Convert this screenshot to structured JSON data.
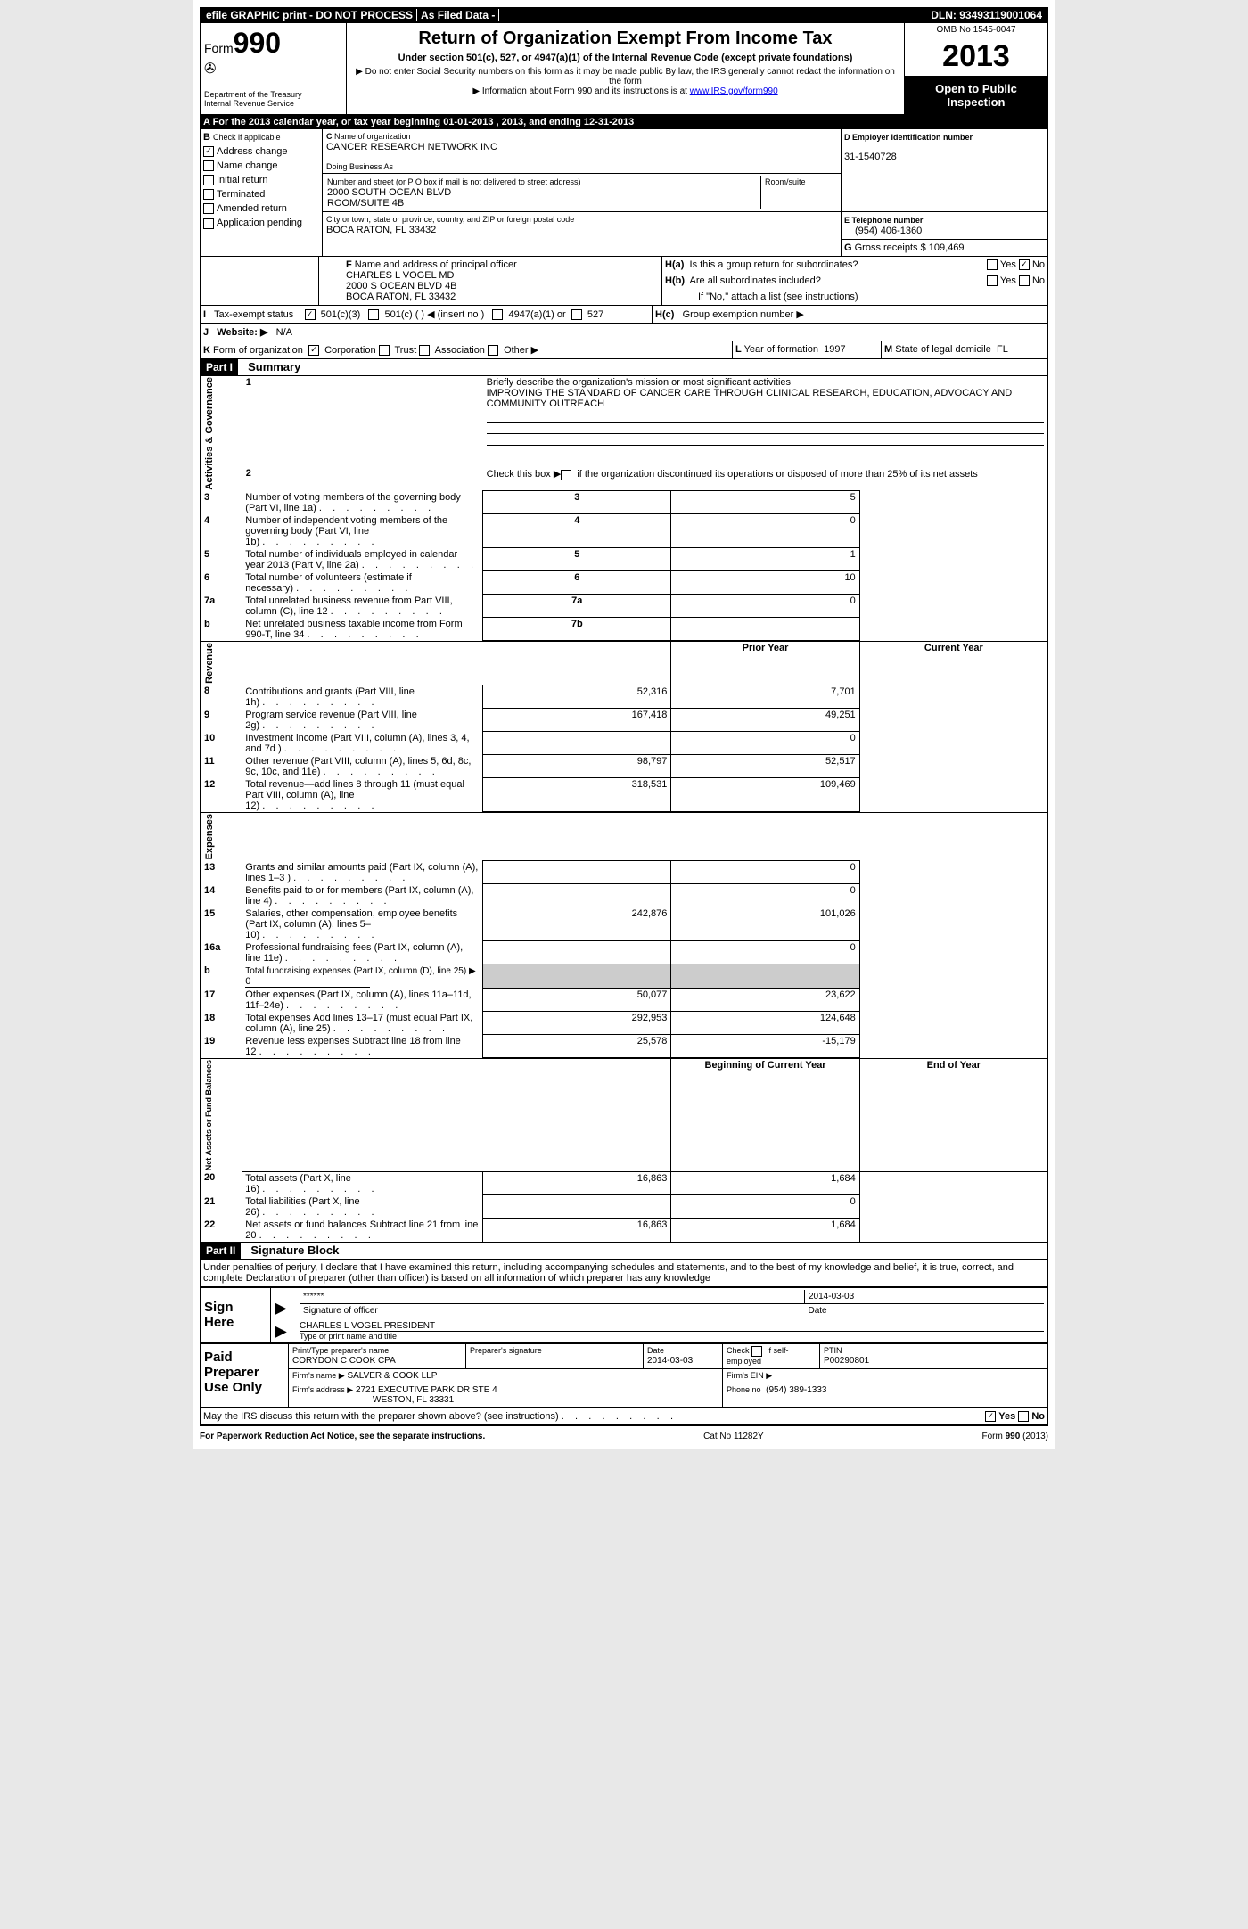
{
  "topbar": {
    "efile": "efile GRAPHIC print - DO NOT PROCESS",
    "asfiled": "As Filed Data -",
    "dln_label": "DLN:",
    "dln": "93493119001064"
  },
  "header": {
    "form_word": "Form",
    "form_num": "990",
    "dept1": "Department of the Treasury",
    "dept2": "Internal Revenue Service",
    "title": "Return of Organization Exempt From Income Tax",
    "sub": "Under section 501(c), 527, or 4947(a)(1) of the Internal Revenue Code (except private foundations)",
    "note1": "▶ Do not enter Social Security numbers on this form as it may be made public  By law, the IRS generally cannot redact the information on the form",
    "note2": "▶ Information about Form 990 and its instructions is at ",
    "link": "www.IRS.gov/form990",
    "omb": "OMB No  1545-0047",
    "year": "2013",
    "inspect": "Open to Public Inspection"
  },
  "rowA": "A  For the 2013 calendar year, or tax year beginning 01-01-2013     , 2013, and ending 12-31-2013",
  "sectionB": {
    "label": "B",
    "check_if": "Check if applicable",
    "items": [
      {
        "label": "Address change",
        "checked": true
      },
      {
        "label": "Name change",
        "checked": false
      },
      {
        "label": "Initial return",
        "checked": false
      },
      {
        "label": "Terminated",
        "checked": false
      },
      {
        "label": "Amended return",
        "checked": false
      },
      {
        "label": "Application pending",
        "checked": false
      }
    ]
  },
  "sectionC": {
    "c_label": "C",
    "name_label": "Name of organization",
    "name": "CANCER RESEARCH NETWORK INC",
    "dba_label": "Doing Business As",
    "addr_label": "Number and street (or P O  box if mail is not delivered to street address)",
    "room_label": "Room/suite",
    "addr1": "2000 SOUTH OCEAN BLVD",
    "addr2": "ROOM/SUITE 4B",
    "city_label": "City or town, state or province, country, and ZIP or foreign postal code",
    "city": "BOCA RATON, FL  33432"
  },
  "sectionD": {
    "label": "D  Employer identification number",
    "ein": "31-1540728"
  },
  "sectionE": {
    "label": "E  Telephone number",
    "phone": "(954) 406-1360"
  },
  "sectionG": {
    "label": "G",
    "text": "Gross receipts $",
    "val": "109,469"
  },
  "sectionF": {
    "label": "F",
    "text": "Name and address of principal officer",
    "name": "CHARLES L VOGEL MD",
    "addr": "2000 S OCEAN BLVD 4B",
    "city": "BOCA RATON, FL  33432"
  },
  "sectionH": {
    "ha": "H(a)",
    "ha_text": "Is this a group return for subordinates?",
    "ha_yes": "Yes",
    "ha_no": "No",
    "hb": "H(b)",
    "hb_text": "Are all subordinates included?",
    "hb_note": "If \"No,\" attach a list  (see instructions)",
    "hc": "H(c)",
    "hc_text": "Group exemption number ▶"
  },
  "sectionI": {
    "label": "I",
    "text": "Tax-exempt status",
    "opts": {
      "c3": "501(c)(3)",
      "c": "501(c) (   ) ◀ (insert no )",
      "a1": "4947(a)(1) or",
      "527": "527"
    }
  },
  "sectionJ": {
    "label": "J",
    "text": "Website: ▶",
    "val": "N/A"
  },
  "sectionK": {
    "label": "K",
    "text": "Form of organization",
    "corp": "Corporation",
    "trust": "Trust",
    "assoc": "Association",
    "other": "Other ▶"
  },
  "sectionL": {
    "label": "L",
    "text": "Year of formation",
    "val": "1997"
  },
  "sectionM": {
    "label": "M",
    "text": "State of legal domicile",
    "val": "FL"
  },
  "part1": {
    "label": "Part I",
    "title": "Summary",
    "side_gov": "Activities & Governance",
    "side_rev": "Revenue",
    "side_exp": "Expenses",
    "side_net": "Net Assets or Fund Balances",
    "q1": "Briefly describe the organization's mission or most significant activities",
    "q1_ans": "IMPROVING THE STANDARD OF CANCER CARE THROUGH CLINICAL RESEARCH, EDUCATION, ADVOCACY AND COMMUNITY OUTREACH",
    "q2": "Check this box ▶      if the organization discontinued its operations or disposed of more than 25% of its net assets",
    "rows_gov": [
      {
        "n": "3",
        "t": "Number of voting members of the governing body (Part VI, line 1a)",
        "cn": "3",
        "v": "5"
      },
      {
        "n": "4",
        "t": "Number of independent voting members of the governing body (Part VI, line 1b)",
        "cn": "4",
        "v": "0"
      },
      {
        "n": "5",
        "t": "Total number of individuals employed in calendar year 2013 (Part V, line 2a)",
        "cn": "5",
        "v": "1"
      },
      {
        "n": "6",
        "t": "Total number of volunteers (estimate if necessary)",
        "cn": "6",
        "v": "10"
      },
      {
        "n": "7a",
        "t": "Total unrelated business revenue from Part VIII, column (C), line 12",
        "cn": "7a",
        "v": "0"
      },
      {
        "n": "  b",
        "t": "Net unrelated business taxable income from Form 990-T, line 34",
        "cn": "7b",
        "v": ""
      }
    ],
    "hdr_prior": "Prior Year",
    "hdr_curr": "Current Year",
    "rows_rev": [
      {
        "n": "8",
        "t": "Contributions and grants (Part VIII, line 1h)",
        "p": "52,316",
        "c": "7,701"
      },
      {
        "n": "9",
        "t": "Program service revenue (Part VIII, line 2g)",
        "p": "167,418",
        "c": "49,251"
      },
      {
        "n": "10",
        "t": "Investment income (Part VIII, column (A), lines 3, 4, and 7d )",
        "p": "",
        "c": "0"
      },
      {
        "n": "11",
        "t": "Other revenue (Part VIII, column (A), lines 5, 6d, 8c, 9c, 10c, and 11e)",
        "p": "98,797",
        "c": "52,517"
      },
      {
        "n": "12",
        "t": "Total revenue—add lines 8 through 11 (must equal Part VIII, column (A), line 12)",
        "p": "318,531",
        "c": "109,469"
      }
    ],
    "rows_exp": [
      {
        "n": "13",
        "t": "Grants and similar amounts paid (Part IX, column (A), lines 1–3 )",
        "p": "",
        "c": "0"
      },
      {
        "n": "14",
        "t": "Benefits paid to or for members (Part IX, column (A), line 4)",
        "p": "",
        "c": "0"
      },
      {
        "n": "15",
        "t": "Salaries, other compensation, employee benefits (Part IX, column (A), lines 5–10)",
        "p": "242,876",
        "c": "101,026"
      },
      {
        "n": "16a",
        "t": "Professional fundraising fees (Part IX, column (A), line 11e)",
        "p": "",
        "c": "0"
      },
      {
        "n": "   b",
        "t": "Total fundraising expenses (Part IX, column (D), line 25) ▶",
        "p": "GREY",
        "c": "GREY",
        "fund": "0"
      },
      {
        "n": "17",
        "t": "Other expenses (Part IX, column (A), lines 11a–11d, 11f–24e)",
        "p": "50,077",
        "c": "23,622"
      },
      {
        "n": "18",
        "t": "Total expenses  Add lines 13–17 (must equal Part IX, column (A), line 25)",
        "p": "292,953",
        "c": "124,648"
      },
      {
        "n": "19",
        "t": "Revenue less expenses  Subtract line 18 from line 12",
        "p": "25,578",
        "c": "-15,179"
      }
    ],
    "hdr_beg": "Beginning of Current Year",
    "hdr_end": "End of Year",
    "rows_net": [
      {
        "n": "20",
        "t": "Total assets (Part X, line 16)",
        "p": "16,863",
        "c": "1,684"
      },
      {
        "n": "21",
        "t": "Total liabilities (Part X, line 26)",
        "p": "",
        "c": "0"
      },
      {
        "n": "22",
        "t": "Net assets or fund balances  Subtract line 21 from line 20",
        "p": "16,863",
        "c": "1,684"
      }
    ]
  },
  "part2": {
    "label": "Part II",
    "title": "Signature Block",
    "perjury": "Under penalties of perjury, I declare that I have examined this return, including accompanying schedules and statements, and to the best of my knowledge and belief, it is true, correct, and complete  Declaration of preparer (other than officer) is based on all information of which preparer has any knowledge",
    "sign_here": "Sign Here",
    "sig_stars": "******",
    "sig_officer": "Signature of officer",
    "sig_date": "2014-03-03",
    "date_label": "Date",
    "officer_name": "CHARLES L VOGEL PRESIDENT",
    "officer_type": "Type or print name and title",
    "paid": "Paid Preparer Use Only",
    "prep_name_label": "Print/Type preparer's name",
    "prep_name": "CORYDON C COOK CPA",
    "prep_sig_label": "Preparer's signature",
    "prep_date_label": "Date",
    "prep_date": "2014-03-03",
    "self_emp": "Check        if self-employed",
    "ptin_label": "PTIN",
    "ptin": "P00290801",
    "firm_name_label": "Firm's name    ▶",
    "firm_name": "SALVER & COOK LLP",
    "firm_ein_label": "Firm's EIN ▶",
    "firm_addr_label": "Firm's address ▶",
    "firm_addr1": "2721 EXECUTIVE PARK DR STE 4",
    "firm_addr2": "WESTON, FL  33331",
    "phone_label": "Phone no",
    "phone": "(954) 389-1333",
    "discuss": "May the IRS discuss this return with the preparer shown above? (see instructions)",
    "yes": "Yes",
    "no": "No"
  },
  "footer": {
    "left": "For Paperwork Reduction Act Notice, see the separate instructions.",
    "mid": "Cat No  11282Y",
    "right": "Form 990 (2013)"
  }
}
